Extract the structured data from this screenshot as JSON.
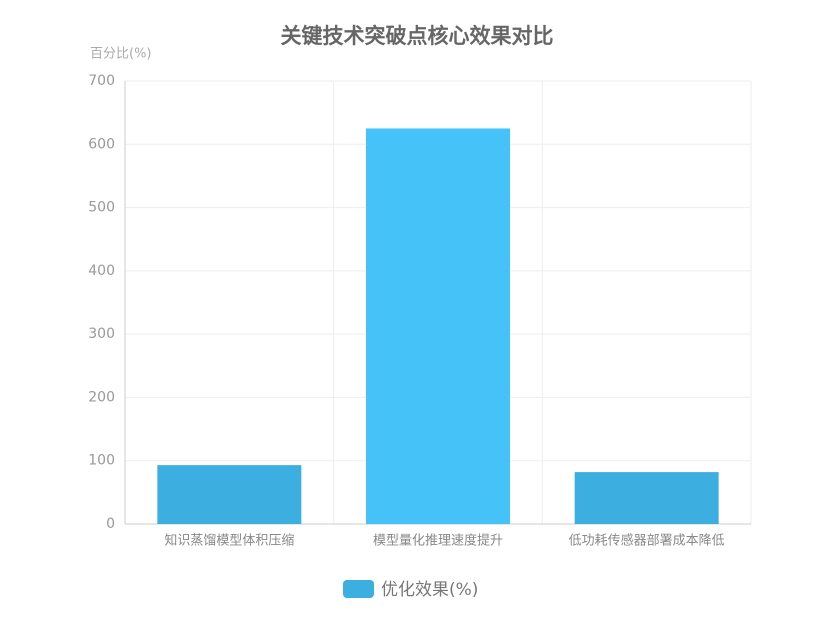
{
  "chart_data": {
    "type": "bar",
    "title": "关键技术突破点核心效果对比",
    "y_label": "百分比(%)",
    "categories": [
      "知识蒸馏模型体积压缩",
      "模型量化推理速度提升",
      "低功耗传感器部署成本降低"
    ],
    "series": [
      {
        "name": "优化效果(%)",
        "color": "#3daee0",
        "colors": [
          "#3daee0",
          "#45c2f8",
          "#3daee0"
        ],
        "values": [
          93,
          625,
          82
        ]
      }
    ],
    "ylim": [
      0,
      700
    ],
    "yticks": [
      0,
      100,
      200,
      300,
      400,
      500,
      600,
      700
    ],
    "grid": true
  }
}
